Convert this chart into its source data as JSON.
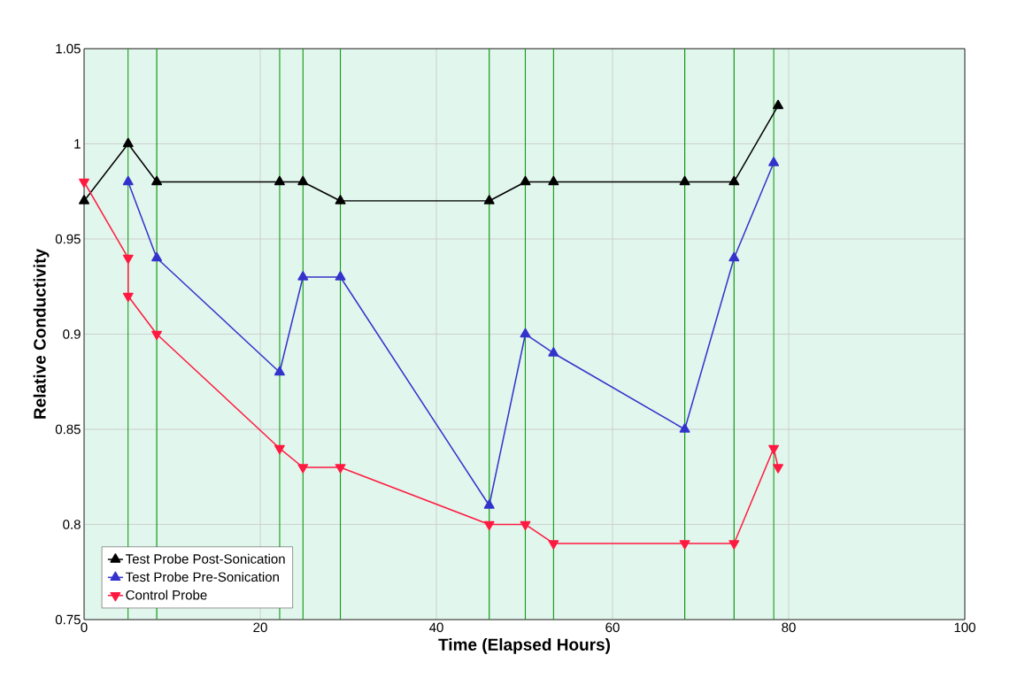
{
  "chart_data": {
    "type": "line",
    "xlabel": "Time (Elapsed Hours)",
    "ylabel": "Relative Conductivity",
    "xlim": [
      0,
      100
    ],
    "ylim": [
      0.75,
      1.05
    ],
    "xticks": [
      0,
      20,
      40,
      60,
      80,
      100
    ],
    "yticks": [
      0.75,
      0.8,
      0.85,
      0.9,
      0.95,
      1,
      1.05
    ],
    "grid": true,
    "legend": "bottom left",
    "line_style": "solid",
    "marker": "triangle",
    "series": [
      {
        "name": "Test Probe Post-Sonication",
        "color": "#000000",
        "x": [
          0,
          5.0,
          8.25,
          22.2,
          24.85,
          29.1,
          46.0,
          50.1,
          53.3,
          68.2,
          73.8,
          78.8
        ],
        "values": [
          0.97,
          1.0,
          0.98,
          0.98,
          0.98,
          0.97,
          0.97,
          0.98,
          0.98,
          0.98,
          0.98,
          1.02
        ]
      },
      {
        "name": "Test Probe Pre-Sonication",
        "color": "#3333cc",
        "x": [
          5.0,
          8.25,
          22.2,
          24.85,
          29.1,
          46.0,
          50.1,
          53.3,
          68.2,
          73.8,
          78.3
        ],
        "values": [
          0.98,
          0.94,
          0.88,
          0.93,
          0.93,
          0.81,
          0.9,
          0.89,
          0.85,
          0.94,
          0.99
        ]
      },
      {
        "name": "Control Probe",
        "color": "#ff1a40",
        "marker": "triangle_down",
        "x": [
          0,
          5.0,
          5.0,
          8.25,
          22.2,
          24.85,
          29.1,
          46.0,
          50.1,
          53.3,
          68.2,
          73.8,
          78.3,
          78.8
        ],
        "values": [
          0.98,
          0.94,
          0.92,
          0.9,
          0.84,
          0.83,
          0.83,
          0.8,
          0.8,
          0.79,
          0.79,
          0.79,
          0.84,
          0.83
        ]
      }
    ],
    "ref_lines": [
      {
        "axis": "x",
        "value": 5.0,
        "color": "#119911"
      },
      {
        "axis": "x",
        "value": 8.25,
        "color": "#119911"
      },
      {
        "axis": "x",
        "value": 22.2,
        "color": "#119911"
      },
      {
        "axis": "x",
        "value": 24.85,
        "color": "#119911"
      },
      {
        "axis": "x",
        "value": 29.1,
        "color": "#119911"
      },
      {
        "axis": "x",
        "value": 46.0,
        "color": "#119911"
      },
      {
        "axis": "x",
        "value": 50.1,
        "color": "#119911"
      },
      {
        "axis": "x",
        "value": 53.3,
        "color": "#119911"
      },
      {
        "axis": "x",
        "value": 68.2,
        "color": "#119911"
      },
      {
        "axis": "x",
        "value": 73.8,
        "color": "#119911"
      },
      {
        "axis": "x",
        "value": 78.3,
        "color": "#119911"
      }
    ]
  }
}
